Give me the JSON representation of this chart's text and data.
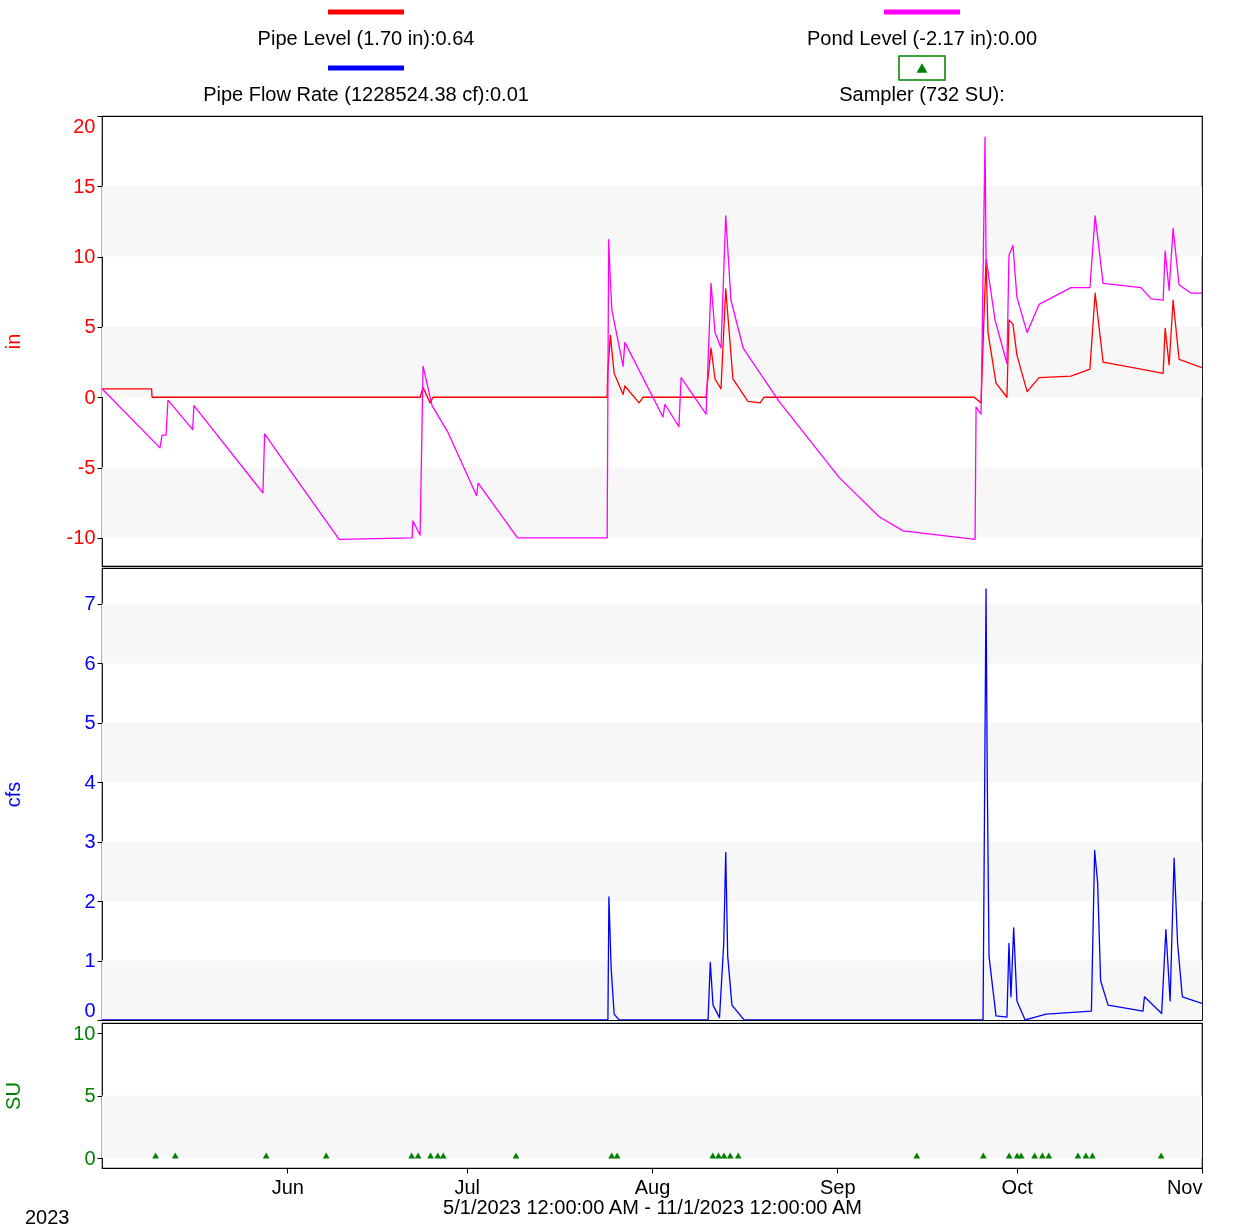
{
  "chart_data": [
    {
      "type": "line",
      "ylabel": "in",
      "legend": "top",
      "tick_labels": "y",
      "xlim": [
        "2023-05-01",
        "2023-11-01"
      ],
      "ylim": [
        -12,
        20
      ],
      "yticks": [
        -10,
        -5,
        0,
        5,
        10,
        15,
        20
      ],
      "bands": [
        {
          "axis": "y",
          "from": -10,
          "to": -5,
          "color": "#f7f7f7"
        },
        {
          "axis": "y",
          "from": 0,
          "to": 5,
          "color": "#f7f7f7"
        },
        {
          "axis": "y",
          "from": 10,
          "to": 15,
          "color": "#f7f7f7"
        }
      ],
      "series": [
        {
          "name": "Pipe Level (1.70 in):0.64",
          "color": "#ff0000",
          "x": [
            "2023-05-01T00:00",
            "2023-05-09T07:00",
            "2023-05-09T09:00",
            "2023-06-23T05:00",
            "2023-06-23T17:00",
            "2023-06-24T21:00",
            "2023-06-25T09:00",
            "2023-07-24T12:00",
            "2023-07-24T14:00",
            "2023-07-25T01:00",
            "2023-07-25T16:00",
            "2023-07-27T04:00",
            "2023-07-27T11:00",
            "2023-07-29T20:00",
            "2023-07-30T12:00",
            "2023-08-10T01:00",
            "2023-08-10T21:00",
            "2023-08-11T13:00",
            "2023-08-12T13:00",
            "2023-08-13T08:00",
            "2023-08-14T13:00",
            "2023-08-17T01:00",
            "2023-08-19T02:00",
            "2023-08-19T18:00",
            "2023-09-23T21:00",
            "2023-09-25T01:00",
            "2023-09-25T13:00",
            "2023-09-25T21:00",
            "2023-09-26T05:00",
            "2023-09-27T13:00",
            "2023-09-29T09:00",
            "2023-09-29T17:00",
            "2023-09-30T09:00",
            "2023-10-01T01:00",
            "2023-10-02T18:00",
            "2023-10-04T18:00",
            "2023-10-10T02:00",
            "2023-10-13T06:00",
            "2023-10-14T03:00",
            "2023-10-15T11:00",
            "2023-10-21T19:00",
            "2023-10-25T12:00",
            "2023-10-25T20:00",
            "2023-10-26T12:00",
            "2023-10-27T04:00",
            "2023-10-28T04:00",
            "2023-11-01T00:00"
          ],
          "values": [
            0.6,
            0.6,
            0.0,
            0.0,
            0.7,
            -0.4,
            0.0,
            0.0,
            1.7,
            4.4,
            1.7,
            0.2,
            0.8,
            -0.4,
            0.0,
            0.0,
            3.5,
            1.3,
            0.6,
            7.7,
            1.3,
            -0.3,
            -0.4,
            0.0,
            0.0,
            -0.4,
            5.8,
            9.8,
            4.6,
            1.0,
            0.0,
            5.5,
            5.2,
            3.0,
            0.4,
            1.4,
            1.5,
            2.0,
            7.4,
            2.5,
            2.0,
            1.7,
            4.9,
            2.3,
            6.9,
            2.7,
            2.1
          ]
        },
        {
          "name": "Pond Level (-2.17 in):0.00",
          "color": "#ff00ff",
          "x": [
            "2023-05-01T00:00",
            "2023-05-10T17:00",
            "2023-05-11T01:00",
            "2023-05-11T17:00",
            "2023-05-12T01:00",
            "2023-05-16T04:00",
            "2023-05-16T09:00",
            "2023-05-27T22:00",
            "2023-05-28T05:00",
            "2023-06-01T07:00",
            "2023-06-09T16:00",
            "2023-06-21T21:00",
            "2023-06-22T00:00",
            "2023-06-23T05:00",
            "2023-06-23T17:00",
            "2023-06-25T05:00",
            "2023-06-27T21:00",
            "2023-07-02T16:00",
            "2023-07-02T22:00",
            "2023-07-09T12:00",
            "2023-07-24T12:00",
            "2023-07-24T18:00",
            "2023-07-25T01:00",
            "2023-07-25T07:00",
            "2023-07-27T04:00",
            "2023-07-27T11:00",
            "2023-08-02T20:00",
            "2023-08-03T04:00",
            "2023-08-05T12:00",
            "2023-08-05T21:00",
            "2023-08-10T01:00",
            "2023-08-10T21:00",
            "2023-08-11T13:00",
            "2023-08-12T13:00",
            "2023-08-13T08:00",
            "2023-08-14T05:00",
            "2023-08-16T06:00",
            "2023-08-22T06:00",
            "2023-09-01T07:00",
            "2023-09-08T00:00",
            "2023-09-12T00:00",
            "2023-09-24T01:00",
            "2023-09-24T05:00",
            "2023-09-25T01:00",
            "2023-09-25T17:00",
            "2023-09-25T21:00",
            "2023-09-27T09:00",
            "2023-09-29T09:00",
            "2023-09-29T17:00",
            "2023-09-30T09:00",
            "2023-10-01T01:00",
            "2023-10-02T18:00",
            "2023-10-04T18:00",
            "2023-10-10T02:00",
            "2023-10-13T06:00",
            "2023-10-14T03:00",
            "2023-10-15T11:00",
            "2023-10-21T19:00",
            "2023-10-23T12:00",
            "2023-10-25T12:00",
            "2023-10-25T20:00",
            "2023-10-26T12:00",
            "2023-10-27T04:00",
            "2023-10-28T04:00",
            "2023-10-30T04:00",
            "2023-11-01T00:00"
          ],
          "values": [
            0.6,
            -3.6,
            -2.7,
            -2.7,
            -0.2,
            -2.3,
            -0.6,
            -6.8,
            -2.6,
            -5.1,
            -10.1,
            -10.0,
            -8.8,
            -9.8,
            2.2,
            -0.6,
            -2.5,
            -7.0,
            -6.1,
            -10.0,
            -10.0,
            11.2,
            8.2,
            6.2,
            2.2,
            3.9,
            -1.4,
            -0.5,
            -2.1,
            1.4,
            -1.2,
            8.1,
            4.6,
            3.5,
            12.9,
            6.9,
            3.5,
            -0.3,
            -5.7,
            -8.5,
            -9.5,
            -10.1,
            -0.7,
            -1.2,
            18.5,
            9.9,
            5.5,
            2.4,
            10.1,
            10.8,
            7.1,
            4.6,
            6.6,
            7.8,
            7.8,
            12.9,
            8.1,
            7.8,
            7.0,
            6.9,
            10.4,
            7.6,
            12.0,
            8.0,
            7.4,
            7.4
          ]
        }
      ]
    },
    {
      "type": "line",
      "ylabel": "cfs",
      "tick_labels": "y",
      "xlim": [
        "2023-05-01",
        "2023-11-01"
      ],
      "ylim": [
        0,
        7.6
      ],
      "yticks": [
        0,
        1,
        2,
        3,
        4,
        5,
        6,
        7
      ],
      "bands": [
        {
          "axis": "y",
          "from": 0,
          "to": 1,
          "color": "#f7f7f7"
        },
        {
          "axis": "y",
          "from": 2,
          "to": 3,
          "color": "#f7f7f7"
        },
        {
          "axis": "y",
          "from": 4,
          "to": 5,
          "color": "#f7f7f7"
        },
        {
          "axis": "y",
          "from": 6,
          "to": 7,
          "color": "#f7f7f7"
        }
      ],
      "series": [
        {
          "name": "Pipe Flow Rate (1228524.38 cf):0.01",
          "color": "#0000ff",
          "x": [
            "2023-05-01T00:00",
            "2023-07-24T15:00",
            "2023-07-24T19:00",
            "2023-07-25T04:00",
            "2023-07-25T16:00",
            "2023-07-26T12:00",
            "2023-08-10T09:00",
            "2023-08-10T18:00",
            "2023-08-11T05:00",
            "2023-08-12T07:00",
            "2023-08-13T00:00",
            "2023-08-13T08:00",
            "2023-08-13T16:00",
            "2023-08-14T09:00",
            "2023-08-16T10:00",
            "2023-09-25T09:00",
            "2023-09-25T21:00",
            "2023-09-26T02:00",
            "2023-09-26T09:00",
            "2023-09-27T13:00",
            "2023-09-29T09:00",
            "2023-09-29T17:00",
            "2023-09-30T01:00",
            "2023-09-30T12:00",
            "2023-10-01T01:00",
            "2023-10-02T10:00",
            "2023-10-05T22:00",
            "2023-10-13T12:00",
            "2023-10-14T01:00",
            "2023-10-14T13:00",
            "2023-10-15T01:00",
            "2023-10-16T07:00",
            "2023-10-22T03:00",
            "2023-10-22T09:00",
            "2023-10-25T06:00",
            "2023-10-25T23:00",
            "2023-10-26T16:00",
            "2023-10-27T08:00",
            "2023-10-27T22:00",
            "2023-10-28T17:00",
            "2023-11-01T00:00"
          ],
          "values": [
            0,
            0,
            2.07,
            0.87,
            0.1,
            0,
            0,
            0.97,
            0.25,
            0.04,
            1.29,
            2.82,
            1.07,
            0.25,
            0,
            0,
            7.25,
            4.06,
            1.07,
            0.07,
            0.05,
            1.29,
            0.39,
            1.55,
            0.32,
            0,
            0.1,
            0.15,
            2.85,
            2.31,
            0.66,
            0.25,
            0.15,
            0.39,
            0.11,
            1.52,
            0.32,
            2.72,
            1.29,
            0.39,
            0.28
          ]
        }
      ]
    },
    {
      "type": "scatter",
      "ylabel": "SU",
      "xlabel": "5/1/2023 12:00:00 AM - 11/1/2023 12:00:00 AM",
      "annotations": [
        "2023"
      ],
      "marker": "triangle",
      "xlim": [
        "2023-05-01",
        "2023-11-01"
      ],
      "ylim": [
        -0.8,
        10.8
      ],
      "yticks": [
        0,
        5,
        10
      ],
      "xticks": [
        {
          "value": "2023-06-01",
          "label": "Jun"
        },
        {
          "value": "2023-07-01",
          "label": "Jul"
        },
        {
          "value": "2023-08-01",
          "label": "Aug"
        },
        {
          "value": "2023-09-01",
          "label": "Sep"
        },
        {
          "value": "2023-10-01",
          "label": "Oct"
        },
        {
          "value": "2023-11-01",
          "label": "Nov"
        }
      ],
      "bands": [
        {
          "axis": "y",
          "from": 0,
          "to": 5,
          "color": "#f7f7f7"
        }
      ],
      "series": [
        {
          "name": "Sampler (732 SU):",
          "color": "#008000",
          "x": [
            "2023-05-09T23:00",
            "2023-05-13T06:00",
            "2023-05-28T11:00",
            "2023-06-07T12:00",
            "2023-06-21T19:00",
            "2023-06-22T21:00",
            "2023-06-24T23:00",
            "2023-06-26T04:00",
            "2023-06-27T02:00",
            "2023-07-09T06:00",
            "2023-07-25T06:00",
            "2023-07-26T04:00",
            "2023-08-11T04:00",
            "2023-08-12T03:00",
            "2023-08-13T01:00",
            "2023-08-14T02:00",
            "2023-08-15T10:00",
            "2023-09-14T07:00",
            "2023-09-25T10:00",
            "2023-09-29T18:00",
            "2023-10-01T02:00",
            "2023-10-01T18:00",
            "2023-10-04T00:00",
            "2023-10-05T07:00",
            "2023-10-06T09:00",
            "2023-10-11T06:00",
            "2023-10-12T14:00",
            "2023-10-13T16:00",
            "2023-10-25T04:00"
          ],
          "values": [
            0.2,
            0.2,
            0.2,
            0.2,
            0.2,
            0.2,
            0.2,
            0.2,
            0.2,
            0.2,
            0.2,
            0.2,
            0.2,
            0.2,
            0.2,
            0.2,
            0.2,
            0.2,
            0.2,
            0.2,
            0.2,
            0.2,
            0.2,
            0.2,
            0.2,
            0.2,
            0.2,
            0.2,
            0.2
          ]
        }
      ]
    }
  ]
}
